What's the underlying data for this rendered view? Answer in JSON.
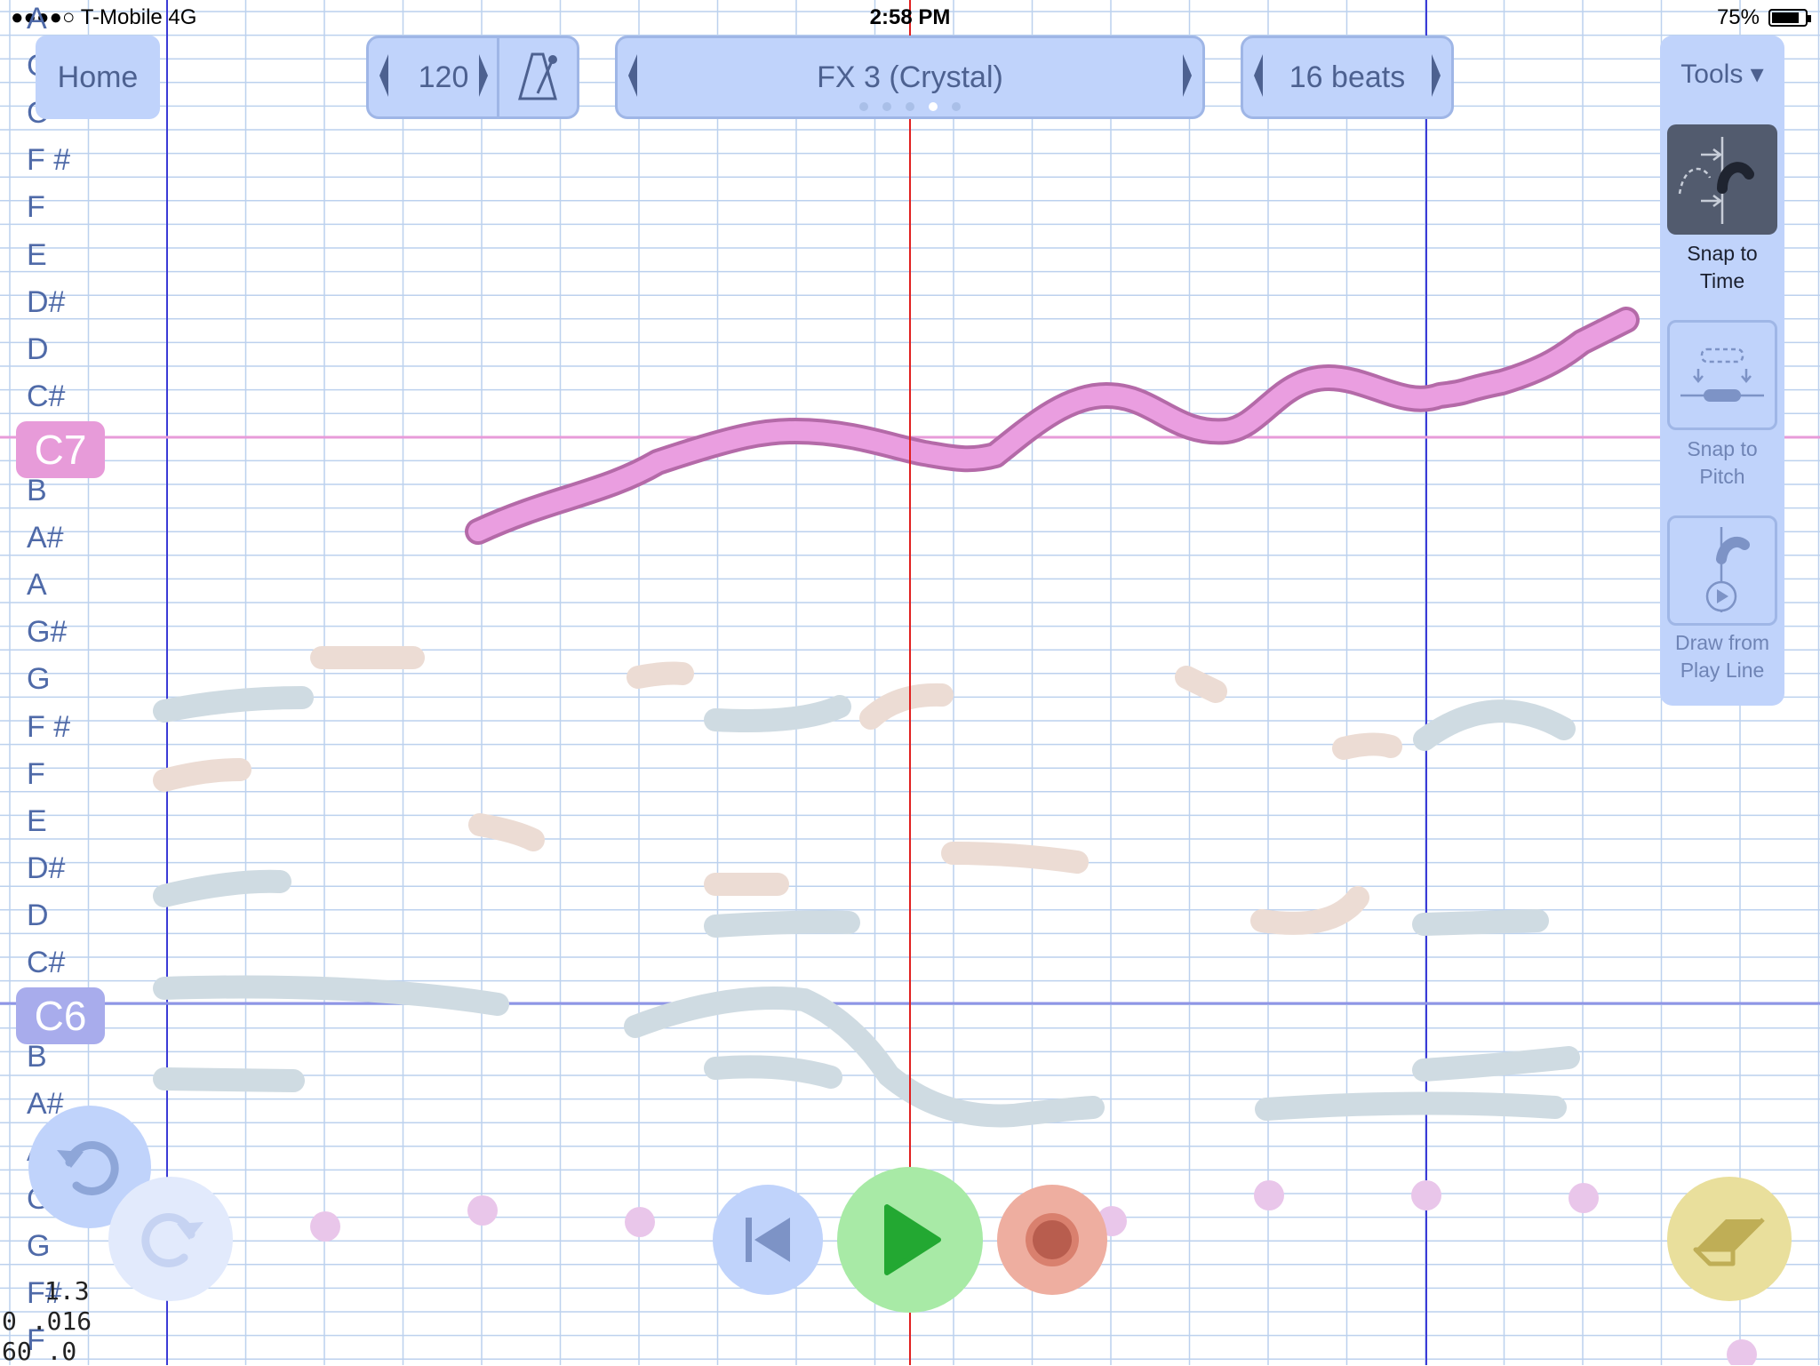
{
  "status_bar": {
    "carrier": "●●●●○ T-Mobile  4G",
    "time": "2:58 PM",
    "battery": "75%"
  },
  "toolbar": {
    "home_label": "Home",
    "tempo": "120",
    "instrument": "FX 3 (Crystal)",
    "instrument_page_count": 5,
    "instrument_page_active": 4,
    "length": "16 beats"
  },
  "tools": {
    "title": "Tools ▾",
    "items": [
      {
        "label": "Snap to\nTime",
        "active": true
      },
      {
        "label": "Snap to\nPitch",
        "active": false
      },
      {
        "label": "Draw from\nPlay Line",
        "active": false
      }
    ]
  },
  "pitch_labels": [
    "A",
    "C",
    "C",
    "F #",
    "F",
    "E",
    "D#",
    "D",
    "C#",
    "C7",
    "B",
    "A#",
    "A",
    "G#",
    "G",
    "F #",
    "F",
    "E",
    "D#",
    "D",
    "C#",
    "C6",
    "B",
    "A#",
    "A",
    "G",
    "G",
    "F#",
    "F"
  ],
  "octave_badges": {
    "upper": "C7",
    "lower": "C6"
  },
  "debug": {
    "line1": "1.3",
    "line2": "0 .016",
    "line3": "60 .0"
  },
  "colors": {
    "grid": "#bcd1ee",
    "bar_line": "#3b3bd6",
    "play_line": "#e02020",
    "active_stroke": "#ea9ee0",
    "active_stroke_border": "#b46aa8",
    "faded_blue": "#cfdbe2",
    "faded_tan": "#ecdcd4",
    "accent_panel": "#c0d3fb",
    "c7_badge": "#e79bd9",
    "c6_badge": "#a8acec"
  },
  "transport": {
    "undo": "undo-icon",
    "redo": "redo-icon",
    "rewind": "rewind-icon",
    "play": "play-icon",
    "record": "record-icon",
    "erase": "eraser-icon"
  }
}
